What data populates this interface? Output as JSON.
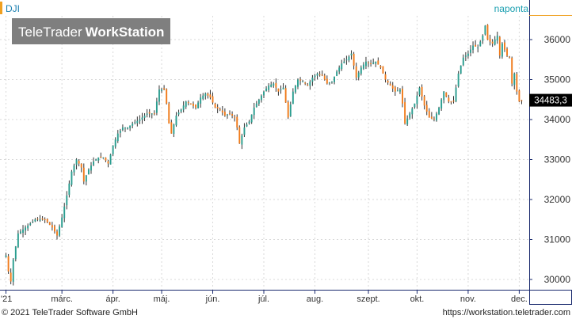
{
  "instrument": {
    "symbol": "DJI",
    "interval": "naponta"
  },
  "watermark": {
    "brand_light": "TeleTrader",
    "brand_bold": "WorkStation"
  },
  "footer": {
    "copyright": "© 2021  TeleTrader Software GmbH",
    "url": "https://workstation.teletrader.com"
  },
  "colors": {
    "up": "#2a9d8f",
    "down": "#f07a1a",
    "accent": "#f0a020",
    "frame": "#1a2a6e",
    "grid": "#d9d9d9",
    "text": "#333333",
    "price_label_bg": "#000000",
    "price_label_text": "#ffffff",
    "wick": "#333333"
  },
  "chart_data": {
    "type": "candlestick",
    "title": "",
    "y_ticks": [
      {
        "value": 30000,
        "label": "30000"
      },
      {
        "value": 31000,
        "label": "31000"
      },
      {
        "value": 32000,
        "label": "32000"
      },
      {
        "value": 33000,
        "label": "33000"
      },
      {
        "value": 34000,
        "label": "34000"
      },
      {
        "value": 35000,
        "label": "35000"
      },
      {
        "value": 36000,
        "label": "36000"
      }
    ],
    "ylim": [
      29700,
      36600
    ],
    "y_axis_side": "right",
    "x_ticks": [
      {
        "index": 0,
        "label": "'21"
      },
      {
        "index": 23,
        "label": "márc."
      },
      {
        "index": 44,
        "label": "ápr."
      },
      {
        "index": 64,
        "label": "máj."
      },
      {
        "index": 85,
        "label": "jún."
      },
      {
        "index": 106,
        "label": "júl."
      },
      {
        "index": 127,
        "label": "aug."
      },
      {
        "index": 149,
        "label": "szept."
      },
      {
        "index": 169,
        "label": "okt."
      },
      {
        "index": 190,
        "label": "nov."
      },
      {
        "index": 211,
        "label": "dec."
      }
    ],
    "last_price": {
      "value": 34483.3,
      "label": "34483,3"
    },
    "grid": true,
    "anchors": [
      [
        0,
        30600
      ],
      [
        1,
        30200
      ],
      [
        2,
        29950
      ],
      [
        3,
        30500
      ],
      [
        5,
        31150
      ],
      [
        8,
        31300
      ],
      [
        12,
        31500
      ],
      [
        16,
        31500
      ],
      [
        19,
        31300
      ],
      [
        21,
        31100
      ],
      [
        23,
        31550
      ],
      [
        25,
        32100
      ],
      [
        27,
        32700
      ],
      [
        29,
        33000
      ],
      [
        31,
        32800
      ],
      [
        32,
        32450
      ],
      [
        34,
        32750
      ],
      [
        36,
        32950
      ],
      [
        38,
        33050
      ],
      [
        40,
        33050
      ],
      [
        42,
        32900
      ],
      [
        44,
        33350
      ],
      [
        46,
        33650
      ],
      [
        48,
        33800
      ],
      [
        50,
        33800
      ],
      [
        52,
        33900
      ],
      [
        55,
        34000
      ],
      [
        58,
        34150
      ],
      [
        61,
        34150
      ],
      [
        63,
        34750
      ],
      [
        65,
        34750
      ],
      [
        66,
        34400
      ],
      [
        67,
        33900
      ],
      [
        68,
        33650
      ],
      [
        70,
        34100
      ],
      [
        72,
        34250
      ],
      [
        74,
        34450
      ],
      [
        76,
        34380
      ],
      [
        78,
        34300
      ],
      [
        80,
        34550
      ],
      [
        82,
        34650
      ],
      [
        84,
        34550
      ],
      [
        86,
        34300
      ],
      [
        88,
        34250
      ],
      [
        90,
        34100
      ],
      [
        92,
        34150
      ],
      [
        94,
        34050
      ],
      [
        95,
        33800
      ],
      [
        96,
        33400
      ],
      [
        98,
        33800
      ],
      [
        100,
        33950
      ],
      [
        102,
        34300
      ],
      [
        104,
        34500
      ],
      [
        106,
        34700
      ],
      [
        108,
        34850
      ],
      [
        110,
        34900
      ],
      [
        112,
        34700
      ],
      [
        114,
        34800
      ],
      [
        116,
        34050
      ],
      [
        118,
        34700
      ],
      [
        120,
        35000
      ],
      [
        122,
        34950
      ],
      [
        124,
        34850
      ],
      [
        126,
        35050
      ],
      [
        128,
        35150
      ],
      [
        130,
        35100
      ],
      [
        132,
        34900
      ],
      [
        134,
        34950
      ],
      [
        136,
        35200
      ],
      [
        138,
        35400
      ],
      [
        140,
        35500
      ],
      [
        142,
        35650
      ],
      [
        144,
        35050
      ],
      [
        146,
        35300
      ],
      [
        148,
        35450
      ],
      [
        150,
        35400
      ],
      [
        152,
        35450
      ],
      [
        154,
        35300
      ],
      [
        156,
        35000
      ],
      [
        158,
        34850
      ],
      [
        160,
        34700
      ],
      [
        162,
        34750
      ],
      [
        163,
        34400
      ],
      [
        164,
        33900
      ],
      [
        166,
        34150
      ],
      [
        168,
        34400
      ],
      [
        170,
        34800
      ],
      [
        172,
        34350
      ],
      [
        174,
        34050
      ],
      [
        176,
        34000
      ],
      [
        178,
        34300
      ],
      [
        180,
        34700
      ],
      [
        182,
        34450
      ],
      [
        184,
        34450
      ],
      [
        186,
        35150
      ],
      [
        188,
        35550
      ],
      [
        190,
        35650
      ],
      [
        192,
        35850
      ],
      [
        194,
        35800
      ],
      [
        196,
        36100
      ],
      [
        197,
        36350
      ],
      [
        198,
        36000
      ],
      [
        200,
        35900
      ],
      [
        202,
        36100
      ],
      [
        203,
        35600
      ],
      [
        204,
        35900
      ],
      [
        206,
        35600
      ],
      [
        207,
        35550
      ],
      [
        208,
        34900
      ],
      [
        209,
        35150
      ],
      [
        210,
        34700
      ],
      [
        211,
        34450
      ],
      [
        212,
        34483
      ]
    ]
  }
}
